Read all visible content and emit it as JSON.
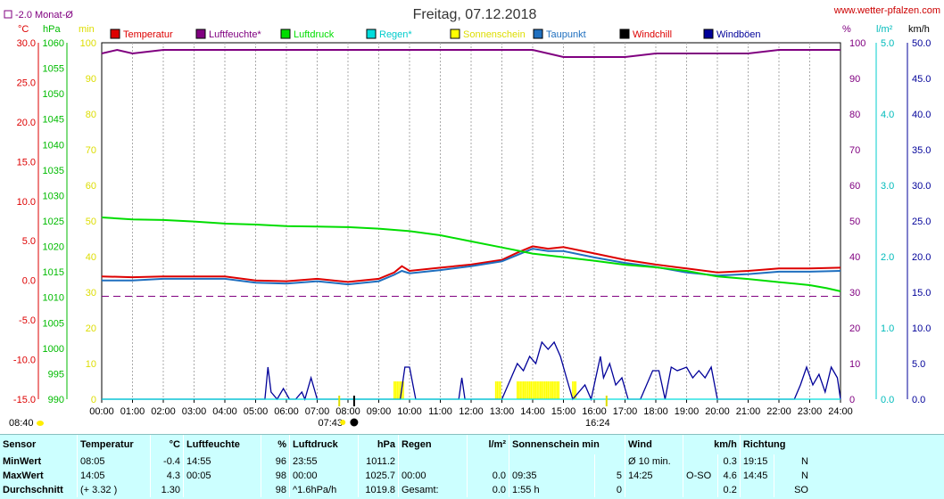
{
  "header": {
    "title": "Freitag, 07.12.2018",
    "site": "www.wetter-pfalzen.com",
    "monthly_avg": "-2.0 Monat-Ø",
    "unit_c": "°C",
    "unit_hpa": "hPa",
    "unit_min": "min",
    "unit_pct": "%",
    "unit_lm2": "l/m²",
    "unit_kmh": "km/h"
  },
  "colors": {
    "temperature": "#dd0000",
    "humidity": "#800080",
    "pressure": "#00dd00",
    "rain": "#00dddd",
    "sunshine": "#ffff00",
    "dewpoint": "#1f6fbf",
    "windchill": "#ff8000",
    "gusts": "#000099"
  },
  "chart_data": {
    "type": "line",
    "title": "Freitag, 07.12.2018",
    "x_unit": "time",
    "x_ticks": [
      "00:00",
      "01:00",
      "02:00",
      "03:00",
      "04:00",
      "05:00",
      "06:00",
      "07:00",
      "08:00",
      "09:00",
      "10:00",
      "11:00",
      "12:00",
      "13:00",
      "14:00",
      "15:00",
      "16:00",
      "17:00",
      "18:00",
      "19:00",
      "20:00",
      "21:00",
      "22:00",
      "23:00",
      "24:00"
    ],
    "axes": {
      "temperature": {
        "label": "°C",
        "range": [
          -15,
          30
        ],
        "ticks": [
          "30.0",
          "25.0",
          "20.0",
          "15.0",
          "10.0",
          "5.0",
          "0.0",
          "-5.0",
          "-10.0",
          "-15.0"
        ]
      },
      "pressure": {
        "label": "hPa",
        "range": [
          990,
          1060
        ],
        "ticks": [
          "1060",
          "1055",
          "1050",
          "1045",
          "1040",
          "1035",
          "1030",
          "1025",
          "1020",
          "1015",
          "1010",
          "1005",
          "1000",
          "995",
          "990"
        ]
      },
      "sunshine": {
        "label": "min",
        "range": [
          0,
          100
        ],
        "ticks": [
          "100",
          "90",
          "80",
          "70",
          "60",
          "50",
          "40",
          "30",
          "20",
          "10",
          "0"
        ]
      },
      "humidity": {
        "label": "%",
        "range": [
          0,
          100
        ],
        "ticks": [
          "100",
          "90",
          "80",
          "70",
          "60",
          "50",
          "40",
          "30",
          "20",
          "10",
          "0"
        ]
      },
      "rain": {
        "label": "l/m²",
        "range": [
          0,
          5
        ],
        "ticks": [
          "5.0",
          "4.0",
          "3.0",
          "2.0",
          "1.0",
          "0.0"
        ]
      },
      "wind": {
        "label": "km/h",
        "range": [
          0,
          50
        ],
        "ticks": [
          "50.0",
          "45.0",
          "40.0",
          "35.0",
          "30.0",
          "25.0",
          "20.0",
          "15.0",
          "10.0",
          "5.0",
          "0.0"
        ]
      }
    },
    "legend": [
      "Temperatur",
      "Luftfeuchte*",
      "Luftdruck",
      "Regen*",
      "Sonnenschein",
      "Taupunkt",
      "Windchill",
      "Windböen"
    ],
    "monthly_avg_temp": -2.0,
    "sunrise": "07:43",
    "sunset": "16:24",
    "series": [
      {
        "name": "Temperatur",
        "key": "temperature",
        "axis": "temperature",
        "x": [
          0,
          1,
          2,
          3,
          4,
          5,
          6,
          7,
          8,
          9,
          9.5,
          9.75,
          10,
          11,
          12,
          13,
          13.5,
          14,
          14.5,
          15,
          16,
          17,
          18,
          19,
          20,
          21,
          22,
          23,
          24
        ],
        "y": [
          0.5,
          0.4,
          0.5,
          0.5,
          0.5,
          0.0,
          -0.1,
          0.2,
          -0.2,
          0.2,
          1.0,
          1.8,
          1.2,
          1.6,
          2.0,
          2.6,
          3.5,
          4.3,
          4.0,
          4.2,
          3.4,
          2.6,
          2.0,
          1.5,
          1.0,
          1.2,
          1.5,
          1.5,
          1.6
        ]
      },
      {
        "name": "Taupunkt",
        "key": "dewpoint",
        "axis": "temperature",
        "x": [
          0,
          1,
          2,
          3,
          4,
          5,
          6,
          7,
          8,
          9,
          9.5,
          9.75,
          10,
          11,
          12,
          13,
          13.5,
          14,
          14.5,
          15,
          16,
          17,
          18,
          19,
          20,
          21,
          22,
          23,
          24
        ],
        "y": [
          0.0,
          0.0,
          0.2,
          0.2,
          0.2,
          -0.3,
          -0.4,
          -0.1,
          -0.5,
          -0.1,
          0.7,
          1.2,
          0.9,
          1.3,
          1.8,
          2.4,
          3.2,
          4.0,
          3.7,
          3.7,
          2.9,
          2.2,
          1.7,
          1.0,
          0.6,
          0.8,
          1.1,
          1.1,
          1.2
        ]
      },
      {
        "name": "Luftdruck",
        "key": "pressure",
        "axis": "pressure",
        "x": [
          0,
          1,
          2,
          3,
          4,
          5,
          6,
          7,
          8,
          9,
          10,
          11,
          12,
          13,
          14,
          15,
          16,
          17,
          18,
          19,
          20,
          21,
          22,
          23,
          23.55,
          24
        ],
        "y": [
          1025.7,
          1025.3,
          1025.2,
          1024.9,
          1024.5,
          1024.3,
          1024.0,
          1023.9,
          1023.8,
          1023.5,
          1023.0,
          1022.2,
          1021.0,
          1019.8,
          1018.6,
          1017.9,
          1017.2,
          1016.4,
          1015.9,
          1015.2,
          1014.1,
          1013.6,
          1013.0,
          1012.4,
          1011.8,
          1011.2
        ]
      },
      {
        "name": "Luftfeuchte*",
        "key": "humidity",
        "axis": "humidity",
        "x": [
          0,
          0.5,
          1,
          2,
          3,
          4,
          5,
          6,
          7,
          8,
          9,
          10,
          11,
          12,
          13,
          14,
          14.5,
          15,
          16,
          17,
          18,
          19,
          20,
          21,
          22,
          23,
          24
        ],
        "y": [
          97,
          98,
          97,
          98,
          98,
          98,
          98,
          98,
          98,
          98,
          98,
          98,
          98,
          98,
          98,
          98,
          97,
          96,
          96,
          96,
          97,
          97,
          97,
          97,
          98,
          98,
          98
        ]
      },
      {
        "name": "Windböen",
        "key": "gusts",
        "axis": "wind",
        "x": [
          0,
          5.3,
          5.4,
          5.5,
          5.7,
          5.9,
          6.1,
          6.3,
          6.5,
          6.6,
          6.8,
          7.0,
          7.2,
          7.4,
          9.7,
          9.85,
          10.0,
          10.2,
          11.6,
          11.7,
          11.8,
          13.0,
          13.3,
          13.5,
          13.7,
          13.9,
          14.1,
          14.3,
          14.5,
          14.7,
          14.9,
          15.1,
          15.3,
          15.7,
          15.9,
          16.2,
          16.3,
          16.5,
          16.7,
          16.9,
          17.1,
          17.5,
          17.9,
          18.1,
          18.3,
          18.5,
          18.7,
          19.0,
          19.2,
          19.4,
          19.6,
          19.8,
          20.0,
          20.2,
          22.5,
          22.7,
          22.9,
          23.1,
          23.3,
          23.5,
          23.7,
          23.9,
          24
        ],
        "y": [
          0,
          0,
          4.5,
          1,
          0,
          1.5,
          0,
          0,
          1,
          0,
          3,
          0,
          0,
          0,
          0,
          4.5,
          4.5,
          0,
          0,
          3,
          0,
          0,
          3,
          5,
          4,
          6,
          5,
          8,
          7,
          8,
          6,
          3,
          0,
          2,
          0,
          6,
          3,
          5,
          2,
          3,
          0,
          0,
          4,
          4,
          0,
          4.5,
          4,
          4.5,
          3,
          4,
          3,
          4.5,
          0,
          0,
          0,
          2,
          4.5,
          2,
          3.5,
          1,
          4.5,
          3,
          0
        ]
      },
      {
        "name": "Regen*",
        "key": "rain",
        "axis": "rain",
        "x": [
          0,
          24
        ],
        "y": [
          0,
          0
        ]
      },
      {
        "name": "Sonnenschein",
        "key": "sunshine",
        "axis": "sunshine",
        "bars": [
          {
            "from": 9.5,
            "to": 9.85,
            "value": 5
          },
          {
            "from": 12.8,
            "to": 13.0,
            "value": 5
          },
          {
            "from": 13.5,
            "to": 14.9,
            "value": 5
          },
          {
            "from": 15.3,
            "to": 15.45,
            "value": 5
          }
        ]
      }
    ]
  },
  "stats": {
    "headers": {
      "sensor": "Sensor",
      "temp": "Temperatur",
      "temp_unit": "°C",
      "hum": "Luftfeuchte",
      "hum_unit": "%",
      "press": "Luftdruck",
      "press_unit": "hPa",
      "rain": "Regen",
      "rain_unit": "l/m²",
      "sun": "Sonnenschein min",
      "wind": "Wind",
      "wind_unit": "km/h",
      "dir": "Richtung"
    },
    "rows": [
      {
        "label": "MinWert",
        "t_time": "08:05",
        "t_val": "-0.4",
        "h_time": "14:55",
        "h_val": "96",
        "p_time": "23:55",
        "p_val": "1011.2",
        "r_time": "",
        "r_val": "",
        "s_time": "",
        "s_val": "",
        "w_time": "Ø 10 min.",
        "w_dir": "",
        "w_val": "0.3",
        "d_time": "19:15",
        "d_val": "N"
      },
      {
        "label": "MaxWert",
        "t_time": "14:05",
        "t_val": "4.3",
        "h_time": "00:05",
        "h_val": "98",
        "p_time": "00:00",
        "p_val": "1025.7",
        "r_time": "00:00",
        "r_val": "0.0",
        "s_time": "09:35",
        "s_val": "5",
        "w_time": "14:25",
        "w_dir": "O-SO",
        "w_val": "4.6",
        "d_time": "14:45",
        "d_val": "N"
      },
      {
        "label": "Durchschnitt",
        "t_time": "(+ 3.32 )",
        "t_val": "1.30",
        "h_time": "",
        "h_val": "98",
        "p_time": "^1.6hPa/h",
        "p_val": "1019.8",
        "r_time": "Gesamt:",
        "r_val": "0.0",
        "s_time": "1:55 h",
        "s_val": "0",
        "w_time": "",
        "w_dir": "",
        "w_val": "0.2",
        "d_time": "",
        "d_val": "SO"
      }
    ]
  }
}
